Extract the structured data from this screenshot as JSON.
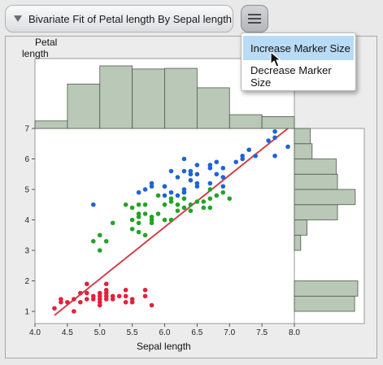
{
  "header": {
    "title": "Bivariate Fit of Petal length By Sepal length",
    "menu_icon": "hamburger-icon"
  },
  "menu": {
    "items": [
      {
        "label": "Increase Marker Size",
        "highlighted": true
      },
      {
        "label": "Decrease Marker Size",
        "highlighted": false
      }
    ]
  },
  "colors": {
    "setosa": "#e2213a",
    "versicolor": "#24a326",
    "virginica": "#1f63d6",
    "fit_line": "#d0414c",
    "histogram_fill": "#b9c8b7"
  },
  "chart_data": {
    "type": "scatter",
    "xlabel": "Sepal length",
    "ylabel": "Petal length",
    "xlim": [
      4.0,
      8.0
    ],
    "ylim": [
      0.6,
      7.0
    ],
    "x_ticks": [
      "4.0",
      "4.5",
      "5.0",
      "5.5",
      "6.0",
      "6.5",
      "7.0",
      "7.5",
      "8.0"
    ],
    "y_ticks": [
      "1",
      "2",
      "3",
      "4",
      "5",
      "6",
      "7"
    ],
    "fit_line": {
      "x": [
        4.3,
        7.9
      ],
      "y": [
        0.87,
        7.0
      ]
    },
    "series": [
      {
        "color": "#e2213a",
        "points": [
          [
            4.3,
            1.1
          ],
          [
            4.4,
            1.3
          ],
          [
            4.4,
            1.4
          ],
          [
            4.5,
            1.3
          ],
          [
            4.6,
            1.4
          ],
          [
            4.6,
            1.0
          ],
          [
            4.7,
            1.3
          ],
          [
            4.7,
            1.6
          ],
          [
            4.8,
            1.4
          ],
          [
            4.8,
            1.6
          ],
          [
            4.8,
            1.9
          ],
          [
            4.9,
            1.4
          ],
          [
            4.9,
            1.5
          ],
          [
            5.0,
            1.2
          ],
          [
            5.0,
            1.4
          ],
          [
            5.0,
            1.6
          ],
          [
            5.0,
            1.5
          ],
          [
            5.0,
            1.3
          ],
          [
            5.1,
            1.4
          ],
          [
            5.1,
            1.5
          ],
          [
            5.1,
            1.7
          ],
          [
            5.1,
            1.9
          ],
          [
            5.1,
            1.6
          ],
          [
            5.2,
            1.5
          ],
          [
            5.2,
            1.4
          ],
          [
            5.3,
            1.5
          ],
          [
            5.4,
            1.3
          ],
          [
            5.4,
            1.5
          ],
          [
            5.4,
            1.7
          ],
          [
            5.5,
            1.3
          ],
          [
            5.5,
            1.4
          ],
          [
            5.7,
            1.5
          ],
          [
            5.7,
            1.7
          ],
          [
            5.8,
            1.2
          ]
        ]
      },
      {
        "color": "#24a326",
        "points": [
          [
            4.9,
            3.3
          ],
          [
            5.0,
            3.5
          ],
          [
            5.0,
            3.0
          ],
          [
            5.1,
            3.3
          ],
          [
            5.2,
            3.9
          ],
          [
            5.4,
            4.5
          ],
          [
            5.5,
            4.0
          ],
          [
            5.5,
            3.7
          ],
          [
            5.5,
            4.4
          ],
          [
            5.6,
            3.6
          ],
          [
            5.6,
            4.5
          ],
          [
            5.6,
            4.2
          ],
          [
            5.6,
            3.9
          ],
          [
            5.6,
            4.1
          ],
          [
            5.7,
            4.5
          ],
          [
            5.7,
            4.2
          ],
          [
            5.7,
            3.5
          ],
          [
            5.8,
            4.1
          ],
          [
            5.8,
            3.9
          ],
          [
            5.8,
            4.0
          ],
          [
            5.9,
            4.8
          ],
          [
            5.9,
            4.2
          ],
          [
            6.0,
            4.0
          ],
          [
            6.0,
            5.1
          ],
          [
            6.0,
            4.5
          ],
          [
            6.1,
            4.7
          ],
          [
            6.1,
            4.0
          ],
          [
            6.1,
            4.6
          ],
          [
            6.2,
            4.3
          ],
          [
            6.2,
            4.5
          ],
          [
            6.3,
            4.9
          ],
          [
            6.3,
            4.4
          ],
          [
            6.3,
            4.7
          ],
          [
            6.4,
            4.5
          ],
          [
            6.4,
            4.3
          ],
          [
            6.5,
            4.6
          ],
          [
            6.6,
            4.6
          ],
          [
            6.6,
            4.4
          ],
          [
            6.7,
            4.7
          ],
          [
            6.7,
            4.4
          ],
          [
            6.7,
            5.0
          ],
          [
            6.8,
            4.8
          ],
          [
            6.9,
            4.9
          ],
          [
            7.0,
            4.7
          ]
        ]
      },
      {
        "color": "#1f63d6",
        "points": [
          [
            4.9,
            4.5
          ],
          [
            5.6,
            4.9
          ],
          [
            5.7,
            5.0
          ],
          [
            5.8,
            5.1
          ],
          [
            5.8,
            5.2
          ],
          [
            6.0,
            4.8
          ],
          [
            6.0,
            5.1
          ],
          [
            6.1,
            5.6
          ],
          [
            6.1,
            4.9
          ],
          [
            6.2,
            4.8
          ],
          [
            6.2,
            5.4
          ],
          [
            6.3,
            6.0
          ],
          [
            6.3,
            5.0
          ],
          [
            6.3,
            5.6
          ],
          [
            6.3,
            4.9
          ],
          [
            6.4,
            5.3
          ],
          [
            6.4,
            5.5
          ],
          [
            6.4,
            5.6
          ],
          [
            6.5,
            5.8
          ],
          [
            6.5,
            5.5
          ],
          [
            6.5,
            5.1
          ],
          [
            6.5,
            5.2
          ],
          [
            6.7,
            5.8
          ],
          [
            6.7,
            5.7
          ],
          [
            6.7,
            5.2
          ],
          [
            6.8,
            5.9
          ],
          [
            6.8,
            5.5
          ],
          [
            6.9,
            5.4
          ],
          [
            6.9,
            5.7
          ],
          [
            6.9,
            5.1
          ],
          [
            7.1,
            5.9
          ],
          [
            7.2,
            6.0
          ],
          [
            7.2,
            6.1
          ],
          [
            7.3,
            6.3
          ],
          [
            7.4,
            6.1
          ],
          [
            7.6,
            6.6
          ],
          [
            7.7,
            6.7
          ],
          [
            7.7,
            6.9
          ],
          [
            7.7,
            6.1
          ],
          [
            7.9,
            6.4
          ]
        ]
      }
    ],
    "x_histogram": {
      "bin_edges": [
        4.0,
        4.5,
        5.0,
        5.5,
        6.0,
        6.5,
        7.0,
        7.5,
        8.0
      ],
      "relative_heights": [
        0.12,
        0.71,
        1.0,
        0.95,
        0.96,
        0.65,
        0.22,
        0.19
      ]
    },
    "y_histogram": {
      "bin_edges": [
        1.0,
        1.5,
        2.0,
        2.5,
        3.0,
        3.5,
        4.0,
        4.5,
        5.0,
        5.5,
        6.0,
        6.5,
        7.0
      ],
      "relative_widths": [
        0.95,
        1.0,
        0,
        0,
        0.1,
        0.2,
        0.68,
        0.96,
        0.68,
        0.66,
        0.28,
        0.25
      ]
    }
  }
}
